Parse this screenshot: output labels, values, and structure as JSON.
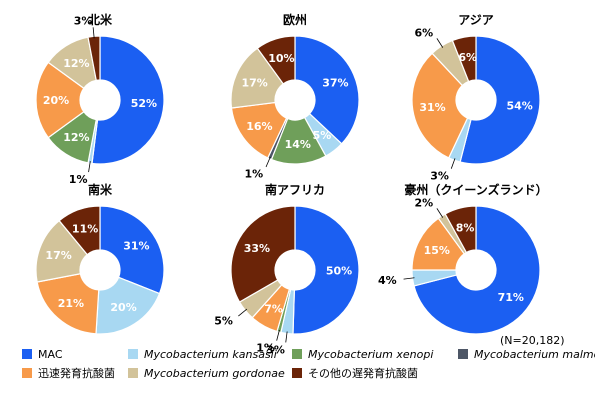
{
  "chart_data": {
    "type": "pie",
    "variant": "donut",
    "note": "(N=20,182)",
    "categories": [
      "MAC",
      "Mycobacterium kansasii",
      "Mycobacterium xenopi",
      "Mycobacterium malmoense",
      "迅速発育抗酸菌",
      "Mycobacterium gordonae",
      "その他の遅発育抗酸菌"
    ],
    "colors": [
      "#1b5ff2",
      "#a8d8f2",
      "#6f9f5a",
      "#4d5666",
      "#f79a4a",
      "#d2c39a",
      "#6b2408"
    ],
    "legend_italic": [
      false,
      true,
      true,
      true,
      false,
      true,
      false
    ],
    "charts": [
      {
        "title": "北米",
        "slices": [
          {
            "category": 0,
            "value": 52,
            "label": "52%"
          },
          {
            "category": 1,
            "value": 1,
            "label": "1%",
            "outside": true
          },
          {
            "category": 2,
            "value": 12,
            "label": "12%"
          },
          {
            "category": 4,
            "value": 20,
            "label": "20%"
          },
          {
            "category": 5,
            "value": 12,
            "label": "12%",
            "dark": true
          },
          {
            "category": 6,
            "value": 3,
            "label": "3%",
            "outside": true
          }
        ]
      },
      {
        "title": "欧州",
        "slices": [
          {
            "category": 0,
            "value": 37,
            "label": "37%"
          },
          {
            "category": 1,
            "value": 5,
            "label": "5%"
          },
          {
            "category": 2,
            "value": 14,
            "label": "14%"
          },
          {
            "category": 3,
            "value": 1,
            "label": "1%",
            "outside": true
          },
          {
            "category": 4,
            "value": 16,
            "label": "16%"
          },
          {
            "category": 5,
            "value": 17,
            "label": "17%",
            "dark": true
          },
          {
            "category": 6,
            "value": 10,
            "label": "10%"
          }
        ]
      },
      {
        "title": "アジア",
        "slices": [
          {
            "category": 0,
            "value": 54,
            "label": "54%"
          },
          {
            "category": 1,
            "value": 3,
            "label": "3%",
            "outside": true
          },
          {
            "category": 4,
            "value": 31,
            "label": "31%"
          },
          {
            "category": 5,
            "value": 6,
            "label": "6%",
            "outside": true
          },
          {
            "category": 6,
            "value": 6,
            "label": "6%"
          }
        ]
      },
      {
        "title": "南米",
        "slices": [
          {
            "category": 0,
            "value": 31,
            "label": "31%"
          },
          {
            "category": 1,
            "value": 20,
            "label": "20%"
          },
          {
            "category": 4,
            "value": 21,
            "label": "21%"
          },
          {
            "category": 5,
            "value": 17,
            "label": "17%",
            "dark": true
          },
          {
            "category": 6,
            "value": 11,
            "label": "11%"
          }
        ]
      },
      {
        "title": "南アフリカ",
        "slices": [
          {
            "category": 0,
            "value": 50,
            "label": "50%"
          },
          {
            "category": 1,
            "value": 3,
            "label": "3%",
            "outside": true
          },
          {
            "category": 2,
            "value": 1,
            "label": "1%",
            "outside": true
          },
          {
            "category": 4,
            "value": 7,
            "label": "7%"
          },
          {
            "category": 5,
            "value": 5,
            "label": "5%",
            "outside": true
          },
          {
            "category": 6,
            "value": 33,
            "label": "33%"
          }
        ]
      },
      {
        "title": "豪州（クイーンズランド）",
        "slices": [
          {
            "category": 0,
            "value": 71,
            "label": "71%"
          },
          {
            "category": 1,
            "value": 4,
            "label": "4%",
            "outside": true
          },
          {
            "category": 4,
            "value": 15,
            "label": "15%"
          },
          {
            "category": 5,
            "value": 2,
            "label": "2%",
            "outside": true
          },
          {
            "category": 6,
            "value": 8,
            "label": "8%"
          }
        ]
      }
    ]
  }
}
